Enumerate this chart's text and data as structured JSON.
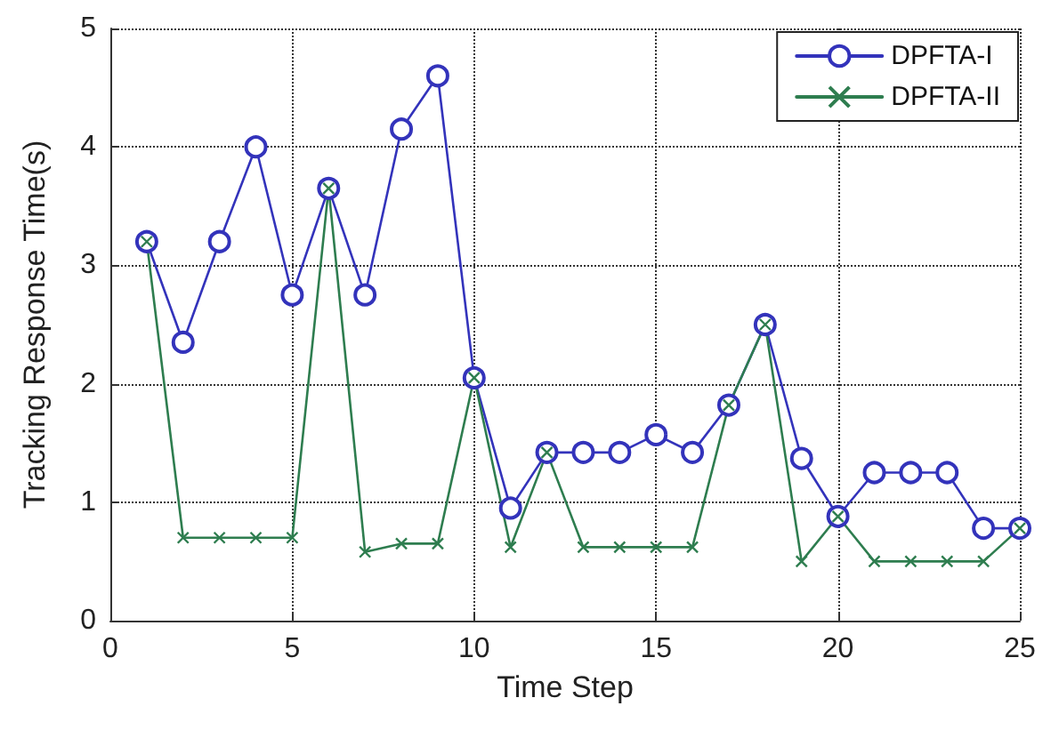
{
  "chart_data": {
    "type": "line",
    "xlabel": "Time Step",
    "ylabel": "Tracking Response Time(s)",
    "x": [
      1,
      2,
      3,
      4,
      5,
      6,
      7,
      8,
      9,
      10,
      11,
      12,
      13,
      14,
      15,
      16,
      17,
      18,
      19,
      20,
      21,
      22,
      23,
      24,
      25
    ],
    "series": [
      {
        "name": "DPFTA-I",
        "color": "#3333bb",
        "marker": "circle",
        "values": [
          3.2,
          2.35,
          3.2,
          4.0,
          2.75,
          3.65,
          2.75,
          4.15,
          4.6,
          2.05,
          0.95,
          1.42,
          1.42,
          1.42,
          1.57,
          1.42,
          1.82,
          2.5,
          1.37,
          0.88,
          1.25,
          1.25,
          1.25,
          0.78,
          0.78
        ]
      },
      {
        "name": "DPFTA-II",
        "color": "#2e7d4f",
        "marker": "cross",
        "values": [
          3.2,
          0.7,
          0.7,
          0.7,
          0.7,
          3.65,
          0.58,
          0.65,
          0.65,
          2.05,
          0.62,
          1.42,
          0.62,
          0.62,
          0.62,
          0.62,
          1.82,
          2.5,
          0.5,
          0.88,
          0.5,
          0.5,
          0.5,
          0.5,
          0.78
        ]
      }
    ],
    "xlim": [
      0,
      25
    ],
    "xticks": [
      0,
      5,
      10,
      15,
      20,
      25
    ],
    "ylim": [
      0,
      5
    ],
    "yticks": [
      0,
      1,
      2,
      3,
      4,
      5
    ],
    "grid": true,
    "legend": "top right",
    "line_style": "solid"
  }
}
